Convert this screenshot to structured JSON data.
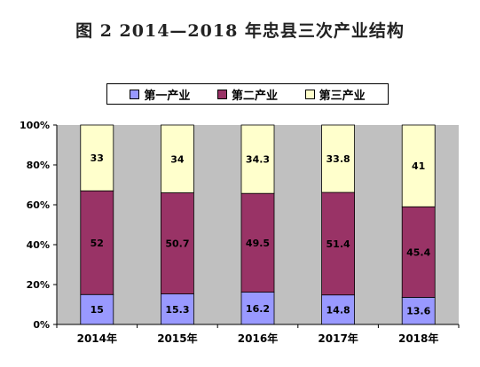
{
  "figure": {
    "title": "图 2    2014—2018 年忠县三次产业结构"
  },
  "colors": {
    "primary": "#9999FF",
    "secondary": "#993366",
    "tertiary": "#FFFFCC",
    "plot_background": "#C0C0C0"
  },
  "chart_data": {
    "type": "bar",
    "stacked": true,
    "title": "图 2    2014—2018 年忠县三次产业结构",
    "categories": [
      "2014年",
      "2015年",
      "2016年",
      "2017年",
      "2018年"
    ],
    "series": [
      {
        "name": "第一产业",
        "values": [
          15,
          15.3,
          16.2,
          14.8,
          13.6
        ]
      },
      {
        "name": "第二产业",
        "values": [
          52,
          50.7,
          49.5,
          51.4,
          45.4
        ]
      },
      {
        "name": "第三产业",
        "values": [
          33,
          34,
          34.3,
          33.8,
          41
        ]
      }
    ],
    "ylim": [
      0,
      100
    ],
    "yticks": [
      "0%",
      "20%",
      "40%",
      "60%",
      "80%",
      "100%"
    ],
    "xlabel": "",
    "ylabel": "",
    "legend_position": "top",
    "grid": false
  }
}
